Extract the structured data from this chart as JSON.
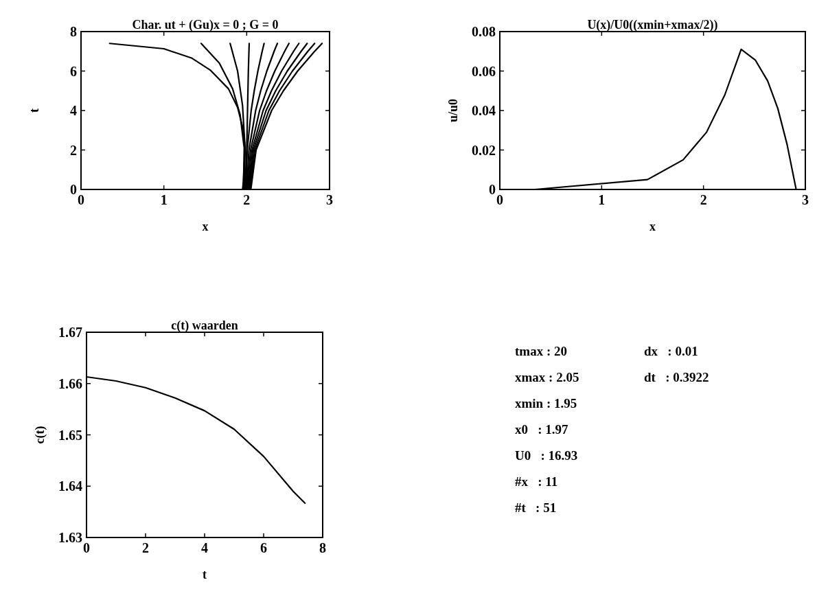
{
  "chart_data": [
    {
      "type": "line",
      "title": "Char. ut + (Gu)x = 0 ; G = 0",
      "xlabel": "x",
      "ylabel": "t",
      "xlim": [
        0,
        3
      ],
      "xticks": [
        0,
        1,
        2,
        3
      ],
      "ylim": [
        0,
        8
      ],
      "yticks": [
        0,
        2,
        4,
        6,
        8
      ],
      "grid": false,
      "line_style": "solid",
      "series": [
        {
          "color": "#000000",
          "x": [
            1.95,
            1.96,
            1.98,
            1.96,
            1.89,
            1.78,
            1.56,
            1.34,
            1.0,
            0.345
          ],
          "values": [
            0,
            0.4,
            2.1,
            3.0,
            4.16,
            5.1,
            6.05,
            6.65,
            7.13,
            7.4
          ]
        },
        {
          "color": "#000000",
          "x": [
            1.96,
            1.97,
            1.92,
            1.83,
            1.67,
            1.45
          ],
          "values": [
            0,
            2.1,
            3.8,
            5.1,
            6.4,
            7.4
          ]
        },
        {
          "color": "#000000",
          "x": [
            1.97,
            1.98,
            1.95,
            1.89,
            1.8
          ],
          "values": [
            0,
            2.1,
            4.25,
            6.0,
            7.4
          ]
        },
        {
          "color": "#000000",
          "x": [
            1.98,
            2.0,
            2.01,
            2.02,
            2.03
          ],
          "values": [
            0,
            2,
            4,
            6,
            7.4
          ]
        },
        {
          "color": "#000000",
          "x": [
            1.99,
            2.006,
            2.054,
            2.091,
            2.135,
            2.187,
            2.21
          ],
          "values": [
            0,
            2,
            4,
            5,
            6,
            7,
            7.4
          ]
        },
        {
          "color": "#000000",
          "x": [
            2.0,
            2.027,
            2.108,
            2.169,
            2.243,
            2.331,
            2.37
          ],
          "values": [
            0,
            2,
            4,
            5,
            6,
            7,
            7.4
          ]
        },
        {
          "color": "#000000",
          "x": [
            2.01,
            2.047,
            2.156,
            2.239,
            2.339,
            2.458,
            2.51
          ],
          "values": [
            0,
            2,
            4,
            5,
            6,
            7,
            7.4
          ]
        },
        {
          "color": "#000000",
          "x": [
            2.02,
            2.065,
            2.198,
            2.299,
            2.421,
            2.566,
            2.63
          ],
          "values": [
            0,
            2,
            4,
            5,
            6,
            7,
            7.4
          ]
        },
        {
          "color": "#000000",
          "x": [
            2.03,
            2.081,
            2.234,
            2.35,
            2.49,
            2.657,
            2.73
          ],
          "values": [
            0,
            2,
            4,
            5,
            6,
            7,
            7.4
          ]
        },
        {
          "color": "#000000",
          "x": [
            2.04,
            2.097,
            2.268,
            2.396,
            2.552,
            2.738,
            2.82
          ],
          "values": [
            0,
            2,
            4,
            5,
            6,
            7,
            7.4
          ]
        },
        {
          "color": "#000000",
          "x": [
            2.05,
            2.113,
            2.301,
            2.443,
            2.615,
            2.82,
            2.91
          ],
          "values": [
            0,
            2,
            4,
            5,
            6,
            7,
            7.4
          ]
        }
      ]
    },
    {
      "type": "line",
      "title": "U(x)/U0((xmin+xmax/2))",
      "xlabel": "x",
      "ylabel": "u/u0",
      "xlim": [
        0,
        3
      ],
      "xticks": [
        0,
        1,
        2,
        3
      ],
      "ylim": [
        0,
        0.08
      ],
      "yticks": [
        0,
        0.02,
        0.04,
        0.06,
        0.08
      ],
      "grid": false,
      "line_style": "solid",
      "series": [
        {
          "color": "#000000",
          "x": [
            0,
            0.345,
            1.45,
            1.8,
            2.03,
            2.21,
            2.37,
            2.51,
            2.63,
            2.73,
            2.82,
            2.91
          ],
          "values": [
            0,
            0,
            0.005,
            0.015,
            0.029,
            0.048,
            0.071,
            0.0655,
            0.055,
            0.041,
            0.023,
            0
          ]
        }
      ]
    },
    {
      "type": "line",
      "title": "c(t) waarden",
      "xlabel": "t",
      "ylabel": "c(t)",
      "xlim": [
        0,
        8
      ],
      "xticks": [
        0,
        2,
        4,
        6,
        8
      ],
      "ylim": [
        1.63,
        1.67
      ],
      "yticks": [
        1.63,
        1.64,
        1.65,
        1.66,
        1.67
      ],
      "grid": false,
      "line_style": "solid",
      "series": [
        {
          "color": "#000000",
          "x": [
            0,
            1,
            2,
            3,
            4,
            5,
            6,
            7,
            7.4
          ],
          "values": [
            1.6613,
            1.6605,
            1.6592,
            1.6572,
            1.6547,
            1.6511,
            1.6458,
            1.639,
            1.6367
          ]
        }
      ]
    },
    {
      "type": "other",
      "annotations": [
        "tmax : 20",
        "xmax : 2.05",
        "xmin : 1.95",
        "x0   : 1.97",
        "U0   : 16.93",
        "#x   : 11",
        "#t   : 51",
        "dx   : 0.01",
        "dt   : 0.3922"
      ]
    }
  ]
}
